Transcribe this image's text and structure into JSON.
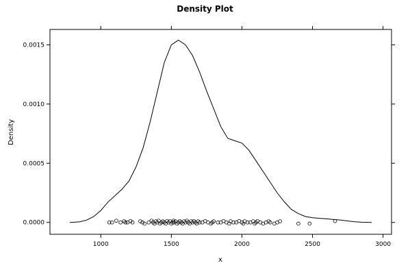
{
  "chart_data": {
    "type": "line",
    "title": "Density Plot",
    "xlabel": "x",
    "ylabel": "Density",
    "xlim": [
      640,
      3060
    ],
    "ylim": [
      -0.0001,
      0.00163
    ],
    "x_ticks": [
      1000,
      1500,
      2000,
      2500,
      3000
    ],
    "x_tick_labels": [
      "1000",
      "1500",
      "2000",
      "2500",
      "3000"
    ],
    "y_ticks": [
      0,
      0.0005,
      0.001,
      0.0015
    ],
    "y_tick_labels": [
      "0.0000",
      "0.0005",
      "0.0010",
      "0.0015"
    ],
    "grid": false,
    "series": [
      {
        "kind": "density_line",
        "x": [
          780,
          850,
          900,
          950,
          1000,
          1050,
          1100,
          1150,
          1200,
          1250,
          1300,
          1350,
          1400,
          1450,
          1500,
          1550,
          1600,
          1650,
          1700,
          1750,
          1800,
          1850,
          1900,
          1950,
          2000,
          2050,
          2100,
          2150,
          2200,
          2250,
          2300,
          2350,
          2400,
          2450,
          2500,
          2550,
          2600,
          2650,
          2700,
          2750,
          2800,
          2850,
          2920
        ],
        "y": [
          0.0,
          5e-06,
          2e-05,
          5e-05,
          0.0001,
          0.00017,
          0.000225,
          0.00028,
          0.00035,
          0.00047,
          0.00063,
          0.00085,
          0.0011,
          0.00135,
          0.0015,
          0.00154,
          0.0015,
          0.00141,
          0.00127,
          0.00111,
          0.00096,
          0.00081,
          0.00071,
          0.00069,
          0.00067,
          0.00061,
          0.00052,
          0.00043,
          0.00034,
          0.00025,
          0.000175,
          0.00011,
          7.5e-05,
          5e-05,
          4e-05,
          3.5e-05,
          3e-05,
          2.5e-05,
          2e-05,
          1.2e-05,
          6e-06,
          2e-06,
          0.0
        ]
      },
      {
        "kind": "rug_points",
        "y_jitter_note": "",
        "x": [
          1060,
          1080,
          1110,
          1140,
          1165,
          1175,
          1190,
          1210,
          1225,
          1280,
          1295,
          1310,
          1340,
          1360,
          1370,
          1380,
          1390,
          1400,
          1410,
          1420,
          1430,
          1440,
          1450,
          1460,
          1470,
          1480,
          1490,
          1500,
          1510,
          1515,
          1520,
          1530,
          1540,
          1550,
          1560,
          1570,
          1580,
          1590,
          1600,
          1610,
          1620,
          1630,
          1640,
          1650,
          1660,
          1670,
          1680,
          1690,
          1700,
          1720,
          1740,
          1760,
          1780,
          1790,
          1800,
          1830,
          1850,
          1870,
          1890,
          1910,
          1920,
          1940,
          1960,
          1980,
          2000,
          2010,
          2020,
          2040,
          2060,
          2080,
          2090,
          2100,
          2110,
          2130,
          2150,
          2170,
          2190,
          2200,
          2230,
          2250,
          2270,
          2400,
          2480,
          2660
        ],
        "y": [
          0.0,
          0.0,
          1.5e-05,
          0.0,
          1e-05,
          0.0,
          0.0,
          1.2e-05,
          0.0,
          1e-05,
          0.0,
          -1e-05,
          0.0,
          1.5e-05,
          0.0,
          -1e-05,
          1e-05,
          0.0,
          1.5e-05,
          -1e-05,
          0.0,
          1e-05,
          0.0,
          -1e-05,
          1.2e-05,
          0.0,
          1e-05,
          -1e-05,
          0.0,
          1.5e-05,
          0.0,
          1e-05,
          -1e-05,
          0.0,
          1.2e-05,
          0.0,
          -1e-05,
          1e-05,
          0.0,
          1.5e-05,
          0.0,
          -1e-05,
          1e-05,
          0.0,
          1.2e-05,
          0.0,
          -1e-05,
          1e-05,
          0.0,
          0.0,
          1.2e-05,
          0.0,
          -1e-05,
          0.0,
          1e-05,
          0.0,
          0.0,
          1.2e-05,
          0.0,
          -1e-05,
          1e-05,
          0.0,
          0.0,
          1.2e-05,
          0.0,
          -1e-05,
          1e-05,
          0.0,
          0.0,
          1e-05,
          -1e-05,
          0.0,
          1.2e-05,
          0.0,
          -1e-05,
          0.0,
          1e-05,
          0.0,
          -1e-05,
          0.0,
          1e-05,
          -1e-05,
          -1e-05,
          1.2e-05
        ]
      }
    ]
  }
}
